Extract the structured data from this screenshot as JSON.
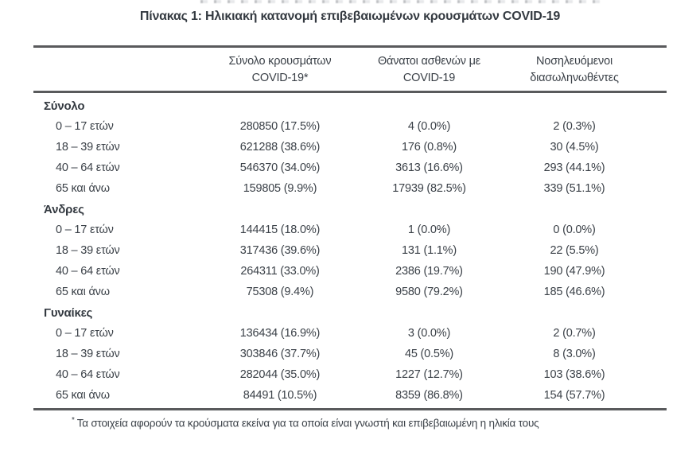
{
  "page": {
    "title": "Πίνακας 1: Ηλικιακή κατανομή επιβεβαιωμένων κρουσμάτων COVID-19",
    "footnote_marker": "*",
    "footnote": "Τα στοιχεία αφορούν τα κρούσματα εκείνα για τα οποία είναι γνωστή και επιβεβαιωμένη η ηλικία τους"
  },
  "table": {
    "columns": [
      {
        "line1": "Σύνολο κρουσμάτων",
        "line2": "COVID-19*"
      },
      {
        "line1": "Θάνατοι ασθενών με",
        "line2": "COVID-19"
      },
      {
        "line1": "Νοσηλευόμενοι",
        "line2": "διασωληνωθέντες"
      }
    ],
    "sections": [
      {
        "label": "Σύνολο",
        "rows": [
          {
            "age": "0 – 17 ετών",
            "cases": "280850 (17.5%)",
            "deaths": "4 (0.0%)",
            "intubated": "2 (0.3%)"
          },
          {
            "age": "18 – 39 ετών",
            "cases": "621288 (38.6%)",
            "deaths": "176 (0.8%)",
            "intubated": "30 (4.5%)"
          },
          {
            "age": "40 – 64 ετών",
            "cases": "546370 (34.0%)",
            "deaths": "3613 (16.6%)",
            "intubated": "293 (44.1%)"
          },
          {
            "age": "65 και άνω",
            "cases": "159805 (9.9%)",
            "deaths": "17939 (82.5%)",
            "intubated": "339 (51.1%)"
          }
        ]
      },
      {
        "label": "Άνδρες",
        "rows": [
          {
            "age": "0 – 17 ετών",
            "cases": "144415 (18.0%)",
            "deaths": "1 (0.0%)",
            "intubated": "0 (0.0%)"
          },
          {
            "age": "18 – 39 ετών",
            "cases": "317436 (39.6%)",
            "deaths": "131 (1.1%)",
            "intubated": "22 (5.5%)"
          },
          {
            "age": "40 – 64 ετών",
            "cases": "264311 (33.0%)",
            "deaths": "2386 (19.7%)",
            "intubated": "190 (47.9%)"
          },
          {
            "age": "65 και άνω",
            "cases": "75308 (9.4%)",
            "deaths": "9580 (79.2%)",
            "intubated": "185 (46.6%)"
          }
        ]
      },
      {
        "label": "Γυναίκες",
        "rows": [
          {
            "age": "0 – 17 ετών",
            "cases": "136434 (16.9%)",
            "deaths": "3 (0.0%)",
            "intubated": "2 (0.7%)"
          },
          {
            "age": "18 – 39 ετών",
            "cases": "303846 (37.7%)",
            "deaths": "45 (0.5%)",
            "intubated": "8 (3.0%)"
          },
          {
            "age": "40 – 64 ετών",
            "cases": "282044 (35.0%)",
            "deaths": "1227 (12.7%)",
            "intubated": "103 (38.6%)"
          },
          {
            "age": "65 και άνω",
            "cases": "84491 (10.5%)",
            "deaths": "8359 (86.8%)",
            "intubated": "154 (57.7%)"
          }
        ]
      }
    ]
  },
  "colors": {
    "text": "#3b4148",
    "heading": "#343a41",
    "rule": "#595a5c",
    "background": "#ffffff"
  }
}
